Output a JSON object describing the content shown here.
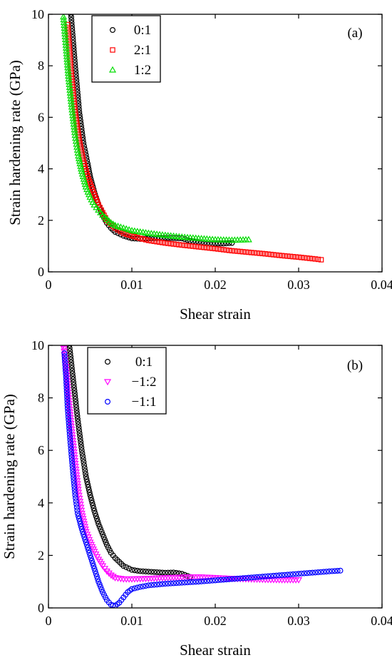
{
  "chart_data": [
    {
      "type": "scatter",
      "panel_label": "(a)",
      "xlabel": "Shear strain",
      "ylabel": "Strain hardening rate (GPa)",
      "xlim": [
        0,
        0.04
      ],
      "ylim": [
        0,
        10
      ],
      "x_ticks": [
        0,
        0.01,
        0.02,
        0.03,
        0.04
      ],
      "x_tick_labels": [
        "0",
        "0.01",
        "0.02",
        "0.03",
        "0.04"
      ],
      "y_ticks": [
        0,
        2,
        4,
        6,
        8,
        10
      ],
      "y_tick_labels": [
        "0",
        "2",
        "4",
        "6",
        "8",
        "10"
      ],
      "legend_position": "top-left",
      "series": [
        {
          "name": "0:1",
          "marker": "circle",
          "color": "#000000",
          "points": [
            [
              0.0027,
              10.0
            ],
            [
              0.0032,
              8.0
            ],
            [
              0.0037,
              6.2
            ],
            [
              0.0042,
              5.0
            ],
            [
              0.0047,
              4.2
            ],
            [
              0.005,
              3.7
            ],
            [
              0.0055,
              3.1
            ],
            [
              0.006,
              2.6
            ],
            [
              0.0065,
              2.2
            ],
            [
              0.007,
              1.9
            ],
            [
              0.0075,
              1.7
            ],
            [
              0.008,
              1.55
            ],
            [
              0.009,
              1.4
            ],
            [
              0.01,
              1.3
            ],
            [
              0.011,
              1.28
            ],
            [
              0.012,
              1.3
            ],
            [
              0.014,
              1.32
            ],
            [
              0.016,
              1.3
            ],
            [
              0.017,
              1.2
            ],
            [
              0.018,
              1.15
            ],
            [
              0.019,
              1.1
            ],
            [
              0.02,
              1.1
            ],
            [
              0.021,
              1.1
            ],
            [
              0.022,
              1.12
            ]
          ]
        },
        {
          "name": "2:1",
          "marker": "square",
          "color": "#ff0000",
          "points": [
            [
              0.0023,
              9.6
            ],
            [
              0.0027,
              7.8
            ],
            [
              0.0032,
              6.2
            ],
            [
              0.0037,
              5.1
            ],
            [
              0.0042,
              4.3
            ],
            [
              0.0047,
              3.7
            ],
            [
              0.0055,
              3.0
            ],
            [
              0.006,
              2.6
            ],
            [
              0.0065,
              2.3
            ],
            [
              0.007,
              2.0
            ],
            [
              0.008,
              1.7
            ],
            [
              0.009,
              1.5
            ],
            [
              0.01,
              1.4
            ],
            [
              0.011,
              1.3
            ],
            [
              0.012,
              1.22
            ],
            [
              0.014,
              1.12
            ],
            [
              0.016,
              1.04
            ],
            [
              0.018,
              0.97
            ],
            [
              0.02,
              0.9
            ],
            [
              0.022,
              0.82
            ],
            [
              0.024,
              0.76
            ],
            [
              0.026,
              0.7
            ],
            [
              0.028,
              0.63
            ],
            [
              0.03,
              0.57
            ],
            [
              0.032,
              0.5
            ],
            [
              0.0327,
              0.47
            ]
          ]
        },
        {
          "name": "1:2",
          "marker": "triangle-up",
          "color": "#00dd00",
          "points": [
            [
              0.0018,
              9.9
            ],
            [
              0.0021,
              8.8
            ],
            [
              0.0024,
              7.6
            ],
            [
              0.0028,
              6.4
            ],
            [
              0.0032,
              5.3
            ],
            [
              0.0036,
              4.5
            ],
            [
              0.004,
              3.9
            ],
            [
              0.0045,
              3.3
            ],
            [
              0.005,
              2.9
            ],
            [
              0.0055,
              2.6
            ],
            [
              0.006,
              2.4
            ],
            [
              0.0065,
              2.2
            ],
            [
              0.007,
              2.05
            ],
            [
              0.0075,
              1.9
            ],
            [
              0.008,
              1.8
            ],
            [
              0.009,
              1.7
            ],
            [
              0.01,
              1.6
            ],
            [
              0.011,
              1.55
            ],
            [
              0.012,
              1.5
            ],
            [
              0.014,
              1.42
            ],
            [
              0.016,
              1.35
            ],
            [
              0.018,
              1.3
            ],
            [
              0.02,
              1.25
            ],
            [
              0.022,
              1.23
            ],
            [
              0.024,
              1.25
            ]
          ]
        }
      ]
    },
    {
      "type": "scatter",
      "panel_label": "(b)",
      "xlabel": "Shear strain",
      "ylabel": "Strain hardening rate (GPa)",
      "xlim": [
        0,
        0.04
      ],
      "ylim": [
        0,
        10
      ],
      "x_ticks": [
        0,
        0.01,
        0.02,
        0.03,
        0.04
      ],
      "x_tick_labels": [
        "0",
        "0.01",
        "0.02",
        "0.03",
        "0.04"
      ],
      "y_ticks": [
        0,
        2,
        4,
        6,
        8,
        10
      ],
      "y_tick_labels": [
        "0",
        "2",
        "4",
        "6",
        "8",
        "10"
      ],
      "legend_position": "top-left",
      "series": [
        {
          "name": "0:1",
          "marker": "circle",
          "color": "#000000",
          "points": [
            [
              0.0025,
              10.0
            ],
            [
              0.003,
              8.6
            ],
            [
              0.0035,
              7.2
            ],
            [
              0.004,
              6.0
            ],
            [
              0.0045,
              5.0
            ],
            [
              0.005,
              4.3
            ],
            [
              0.0055,
              3.7
            ],
            [
              0.006,
              3.2
            ],
            [
              0.0065,
              2.8
            ],
            [
              0.007,
              2.4
            ],
            [
              0.0075,
              2.1
            ],
            [
              0.008,
              1.9
            ],
            [
              0.009,
              1.6
            ],
            [
              0.01,
              1.45
            ],
            [
              0.011,
              1.4
            ],
            [
              0.012,
              1.38
            ],
            [
              0.013,
              1.36
            ],
            [
              0.014,
              1.34
            ],
            [
              0.015,
              1.35
            ],
            [
              0.016,
              1.3
            ],
            [
              0.017,
              1.18
            ]
          ]
        },
        {
          "name": "−1:2",
          "marker": "triangle-down",
          "color": "#ff00ff",
          "points": [
            [
              0.0018,
              10.0
            ],
            [
              0.0021,
              9.2
            ],
            [
              0.0024,
              8.0
            ],
            [
              0.0028,
              6.7
            ],
            [
              0.0032,
              5.5
            ],
            [
              0.0036,
              4.4
            ],
            [
              0.004,
              3.6
            ],
            [
              0.0045,
              2.9
            ],
            [
              0.005,
              2.5
            ],
            [
              0.0055,
              2.15
            ],
            [
              0.006,
              1.85
            ],
            [
              0.0065,
              1.6
            ],
            [
              0.007,
              1.4
            ],
            [
              0.0075,
              1.25
            ],
            [
              0.008,
              1.15
            ],
            [
              0.009,
              1.1
            ],
            [
              0.01,
              1.1
            ],
            [
              0.012,
              1.12
            ],
            [
              0.014,
              1.15
            ],
            [
              0.016,
              1.17
            ],
            [
              0.018,
              1.18
            ],
            [
              0.02,
              1.15
            ],
            [
              0.022,
              1.12
            ],
            [
              0.024,
              1.1
            ],
            [
              0.026,
              1.08
            ],
            [
              0.028,
              1.07
            ],
            [
              0.03,
              1.07
            ]
          ]
        },
        {
          "name": "−1:1",
          "marker": "circle",
          "color": "#0000ff",
          "points": [
            [
              0.0019,
              9.7
            ],
            [
              0.0021,
              8.8
            ],
            [
              0.0023,
              7.6
            ],
            [
              0.0026,
              6.4
            ],
            [
              0.0029,
              5.3
            ],
            [
              0.0032,
              4.3
            ],
            [
              0.0035,
              3.6
            ],
            [
              0.004,
              3.0
            ],
            [
              0.0045,
              2.5
            ],
            [
              0.005,
              2.0
            ],
            [
              0.0055,
              1.5
            ],
            [
              0.006,
              1.0
            ],
            [
              0.0065,
              0.6
            ],
            [
              0.007,
              0.3
            ],
            [
              0.0075,
              0.12
            ],
            [
              0.008,
              0.08
            ],
            [
              0.0085,
              0.2
            ],
            [
              0.009,
              0.4
            ],
            [
              0.0095,
              0.6
            ],
            [
              0.01,
              0.72
            ],
            [
              0.011,
              0.8
            ],
            [
              0.012,
              0.86
            ],
            [
              0.014,
              0.92
            ],
            [
              0.016,
              0.96
            ],
            [
              0.018,
              1.0
            ],
            [
              0.02,
              1.05
            ],
            [
              0.022,
              1.1
            ],
            [
              0.024,
              1.15
            ],
            [
              0.026,
              1.2
            ],
            [
              0.028,
              1.25
            ],
            [
              0.03,
              1.3
            ],
            [
              0.032,
              1.35
            ],
            [
              0.034,
              1.4
            ],
            [
              0.035,
              1.42
            ]
          ]
        }
      ]
    }
  ]
}
